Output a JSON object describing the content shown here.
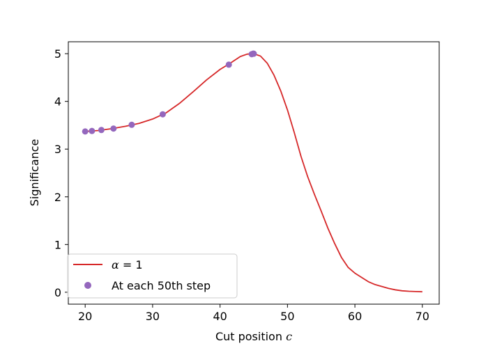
{
  "colors": {
    "line": "#d62728",
    "marker": "#9467bd"
  },
  "chart_data": {
    "type": "line",
    "xlabel": {
      "text": "Cut position ",
      "var": "c"
    },
    "ylabel": "Significance",
    "xlim": [
      17.5,
      72.5
    ],
    "ylim": [
      -0.25,
      5.25
    ],
    "xticks": [
      20,
      30,
      40,
      50,
      60,
      70
    ],
    "yticks": [
      0,
      1,
      2,
      3,
      4,
      5
    ],
    "grid": false,
    "legend_position": "lower-left",
    "series": [
      {
        "name": "α = 1",
        "legend_var": "α",
        "legend_rest": " = 1",
        "kind": "line",
        "color": "#d62728",
        "x": [
          20,
          22,
          24,
          26,
          28,
          30,
          32,
          34,
          36,
          38,
          40,
          41.5,
          43,
          44,
          45,
          46,
          47,
          48,
          49,
          50,
          51,
          52,
          53,
          54,
          55,
          56,
          57,
          58,
          59,
          60,
          61,
          62,
          63,
          64,
          65,
          66,
          67,
          68,
          69,
          70
        ],
        "y": [
          3.37,
          3.39,
          3.43,
          3.48,
          3.54,
          3.63,
          3.76,
          3.96,
          4.2,
          4.45,
          4.67,
          4.8,
          4.94,
          4.99,
          5.0,
          4.95,
          4.8,
          4.55,
          4.22,
          3.82,
          3.35,
          2.85,
          2.42,
          2.05,
          1.7,
          1.34,
          1.02,
          0.73,
          0.52,
          0.4,
          0.31,
          0.22,
          0.16,
          0.12,
          0.08,
          0.05,
          0.03,
          0.02,
          0.015,
          0.01
        ]
      },
      {
        "name": "At each 50th step",
        "kind": "scatter",
        "color": "#9467bd",
        "x": [
          20.0,
          21.0,
          22.4,
          24.2,
          26.9,
          31.5,
          41.3,
          44.7,
          44.9,
          45.0
        ],
        "y": [
          3.37,
          3.38,
          3.4,
          3.43,
          3.51,
          3.73,
          4.77,
          4.99,
          5.0,
          5.0
        ]
      }
    ]
  }
}
